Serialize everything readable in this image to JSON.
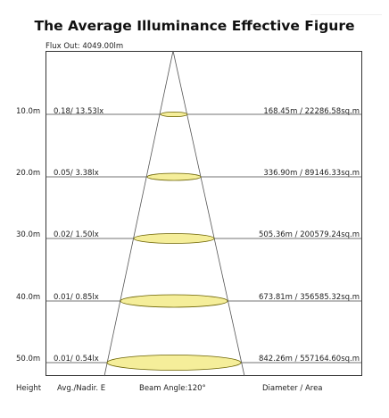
{
  "title": "The Average Illuminance Effective Figure",
  "flux_out": "Flux Out: 4049.00lm",
  "rows": [
    {
      "height": "10.0m",
      "illuminance": "0.18/ 13.53lx",
      "diameter_area": "168.45m / 22286.58sq.m"
    },
    {
      "height": "20.0m",
      "illuminance": "0.05/ 3.38lx",
      "diameter_area": "336.90m / 89146.33sq.m"
    },
    {
      "height": "30.0m",
      "illuminance": "0.02/ 1.50lx",
      "diameter_area": "505.36m / 200579.24sq.m"
    },
    {
      "height": "40.0m",
      "illuminance": "0.01/ 0.85lx",
      "diameter_area": "673.81m / 356585.32sq.m"
    },
    {
      "height": "50.0m",
      "illuminance": "0.01/ 0.54lx",
      "diameter_area": "842.26m / 557164.60sq.m"
    }
  ],
  "footer": {
    "height_label": "Height",
    "illuminance_label": "Avg./Nadir. E",
    "beam_angle": "Beam Angle:120°",
    "diameter_label": "Diameter / Area"
  },
  "colors": {
    "spot_fill": "#f5ee9a",
    "spot_stroke": "#6b6200",
    "beam_line": "#555555"
  }
}
